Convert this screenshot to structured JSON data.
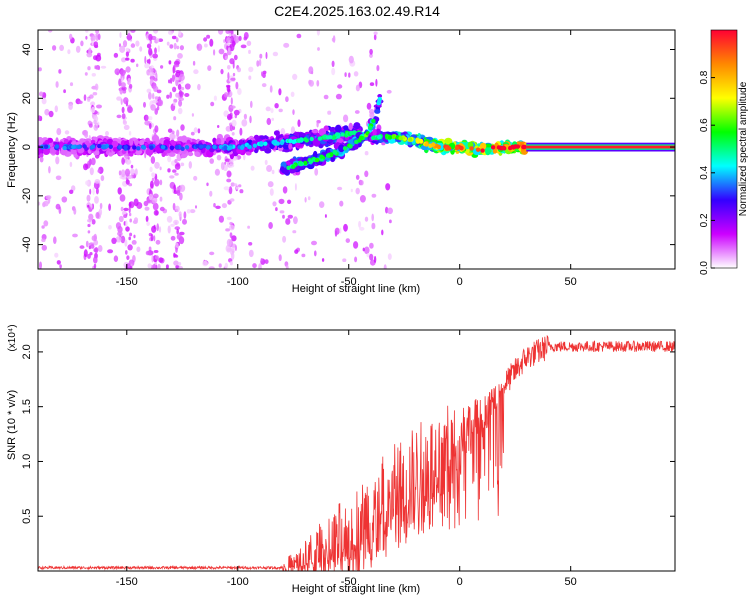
{
  "title": "C2E4.2025.163.02.49.R14",
  "chart_data": [
    {
      "type": "heatmap",
      "title": "C2E4.2025.163.02.49.R14",
      "xlabel": "Height of straight line (km)",
      "ylabel": "Frequency (Hz)",
      "xlim": [
        -190,
        97
      ],
      "ylim": [
        -50,
        48
      ],
      "xticks": [
        "-150",
        "-100",
        "-50",
        "0",
        "50"
      ],
      "xtick_values": [
        -150,
        -100,
        -50,
        0,
        50
      ],
      "yticks": [
        "-40",
        "-20",
        "0",
        "20",
        "40"
      ],
      "ytick_values": [
        -40,
        -20,
        0,
        20,
        40
      ],
      "colorbar": {
        "label": "Normalized spectral amplitude",
        "range": [
          0,
          1
        ],
        "ticks": [
          "0.0",
          "0.2",
          "0.4",
          "0.6",
          "0.8"
        ],
        "tick_values": [
          0.0,
          0.2,
          0.4,
          0.6,
          0.8
        ],
        "colormap": [
          "#ffffff",
          "#cc00ff",
          "#3300ff",
          "#00ffff",
          "#00ff00",
          "#ffff00",
          "#ff8800",
          "#ff0033"
        ]
      },
      "tracks": [
        {
          "x": [
            -190,
            -150,
            -120,
            -100,
            -80,
            -60,
            -45
          ],
          "y": [
            0,
            0,
            0,
            0,
            2,
            4,
            6
          ],
          "amplitude": [
            0.25,
            0.22,
            0.22,
            0.3,
            0.35,
            0.4,
            0.4
          ]
        },
        {
          "x": [
            -80,
            -60,
            -50,
            -42,
            -38,
            -36
          ],
          "y": [
            -9,
            -4,
            0,
            5,
            12,
            20
          ],
          "amplitude": [
            0.4,
            0.45,
            0.45,
            0.5,
            0.4,
            0.3
          ]
        },
        {
          "x": [
            -40,
            -30,
            -20,
            -10,
            0,
            10,
            20,
            30
          ],
          "y": [
            4,
            4,
            3,
            0,
            0,
            -1,
            0,
            0
          ],
          "amplitude": [
            0.35,
            0.5,
            0.6,
            0.75,
            0.85,
            0.85,
            0.9,
            0.95
          ]
        },
        {
          "x": [
            30,
            97
          ],
          "y": [
            0,
            0
          ],
          "amplitude": [
            1.0,
            1.0
          ]
        }
      ]
    },
    {
      "type": "line",
      "xlabel": "Height of straight line (km)",
      "ylabel": "SNR (10 * v/v)",
      "multiplier": "(x10⁴)",
      "xlim": [
        -190,
        97
      ],
      "ylim": [
        0,
        2.2
      ],
      "xticks": [
        "-150",
        "-100",
        "-50",
        "0",
        "50"
      ],
      "xtick_values": [
        -150,
        -100,
        -50,
        0,
        50
      ],
      "yticks": [
        "0.5",
        "1.0",
        "1.5",
        "2.0"
      ],
      "ytick_values": [
        0.5,
        1.0,
        1.5,
        2.0
      ],
      "color": "#ee3333",
      "trend": {
        "x": [
          -190,
          -80,
          -70,
          -60,
          -50,
          -40,
          -30,
          -20,
          -10,
          0,
          10,
          20,
          30,
          40,
          97
        ],
        "y": [
          0.03,
          0.03,
          0.08,
          0.2,
          0.3,
          0.45,
          0.65,
          0.85,
          1.05,
          1.25,
          1.4,
          1.7,
          1.95,
          2.05,
          2.05
        ]
      }
    }
  ]
}
